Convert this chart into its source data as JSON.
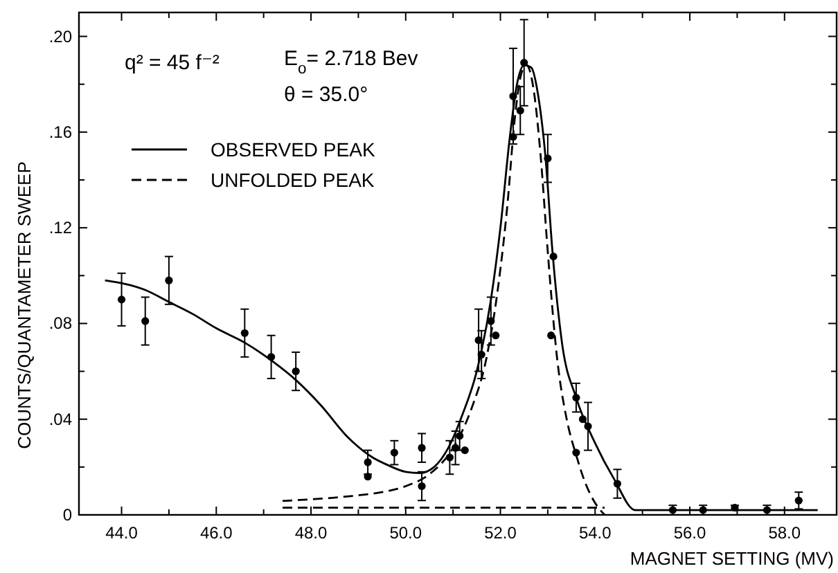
{
  "chart_data": {
    "type": "scatter",
    "xlabel": "MAGNET SETTING (MV)",
    "ylabel": "COUNTS/QUANTAMETER SWEEP",
    "annotations": [
      "q² = 45 f⁻²",
      "E$_{o}$= 2.718 Bev",
      "θ = 35.0°"
    ],
    "xlim": [
      43.1,
      59.1
    ],
    "ylim": [
      0,
      0.21
    ],
    "xticks": [
      {
        "value": 44,
        "label": "44.0"
      },
      {
        "value": 45,
        "label": null
      },
      {
        "value": 46,
        "label": "46.0"
      },
      {
        "value": 47,
        "label": null
      },
      {
        "value": 48,
        "label": "48.0"
      },
      {
        "value": 49,
        "label": null
      },
      {
        "value": 50,
        "label": "50.0"
      },
      {
        "value": 51,
        "label": null
      },
      {
        "value": 52,
        "label": "52.0"
      },
      {
        "value": 53,
        "label": null
      },
      {
        "value": 54,
        "label": "54.0"
      },
      {
        "value": 55,
        "label": null
      },
      {
        "value": 56,
        "label": "56.0"
      },
      {
        "value": 57,
        "label": null
      },
      {
        "value": 58,
        "label": "58.0"
      }
    ],
    "yticks": [
      0,
      {
        "value": 0.02,
        "label": null
      },
      {
        "value": 0.04,
        "label": ".04"
      },
      {
        "value": 0.06,
        "label": null
      },
      {
        "value": 0.08,
        "label": ".08"
      },
      {
        "value": 0.1,
        "label": null
      },
      {
        "value": 0.12,
        "label": ".12"
      },
      {
        "value": 0.14,
        "label": null
      },
      {
        "value": 0.16,
        "label": ".16"
      },
      {
        "value": 0.18,
        "label": null
      },
      {
        "value": 0.2,
        "label": ".20"
      }
    ],
    "grid": false,
    "legend": "top left",
    "series": [
      {
        "type": "line",
        "name": "OBSERVED PEAK",
        "color": "#000000",
        "line_style": "solid",
        "marker": "none",
        "x": [
          43.65,
          44.5,
          45,
          45.5,
          46,
          46.6,
          47.2,
          47.7,
          48.2,
          48.8,
          49.3,
          49.6,
          50.0,
          50.3,
          50.6,
          50.9,
          51.2,
          51.5,
          51.8,
          52.0,
          52.2,
          52.35,
          52.5,
          52.65,
          52.8,
          52.95,
          53.1,
          53.3,
          53.6,
          54.0,
          54.4,
          54.85,
          56.0,
          58.7
        ],
        "values": [
          0.098,
          0.094,
          0.089,
          0.084,
          0.078,
          0.072,
          0.064,
          0.056,
          0.046,
          0.032,
          0.024,
          0.021,
          0.018,
          0.0175,
          0.02,
          0.028,
          0.042,
          0.06,
          0.09,
          0.12,
          0.158,
          0.18,
          0.188,
          0.187,
          0.175,
          0.15,
          0.11,
          0.072,
          0.049,
          0.03,
          0.015,
          0.002,
          0.002,
          0.002
        ]
      },
      {
        "type": "line",
        "name": "UNFOLDED PEAK",
        "color": "#000000",
        "line_style": "dashed",
        "marker": "none",
        "x": [
          47.4,
          48.0,
          48.5,
          49.0,
          49.5,
          50.0,
          50.5,
          51.0,
          51.4,
          51.7,
          51.95,
          52.15,
          52.3,
          52.45,
          52.55,
          52.7,
          52.85,
          53.0,
          53.2,
          53.4,
          53.6,
          53.8,
          54.0,
          54.2
        ],
        "values": [
          0.0058,
          0.0065,
          0.0072,
          0.0082,
          0.0095,
          0.012,
          0.017,
          0.028,
          0.045,
          0.065,
          0.095,
          0.13,
          0.165,
          0.185,
          0.188,
          0.178,
          0.15,
          0.11,
          0.065,
          0.04,
          0.025,
          0.013,
          0.005,
          0.0
        ]
      },
      {
        "type": "line",
        "color": "#000000",
        "line_style": "dashed",
        "marker": "none",
        "x": [
          47.4,
          54.2
        ],
        "values": [
          0.003,
          0.003
        ]
      },
      {
        "color": "#000000",
        "marker": "circle",
        "x": [
          44.0,
          44.5,
          45.0,
          46.6,
          47.16,
          47.68,
          49.2,
          49.2,
          49.76,
          50.34,
          50.34,
          50.93,
          51.05,
          51.14,
          51.25,
          51.54,
          51.6,
          51.8,
          51.9,
          52.27,
          52.27,
          52.42,
          52.5,
          53.0,
          53.07,
          53.12,
          53.6,
          53.6,
          53.74,
          53.85,
          54.47,
          55.64,
          56.28,
          56.95,
          57.63,
          58.3
        ],
        "values": [
          0.09,
          0.081,
          0.098,
          0.076,
          0.066,
          0.06,
          0.022,
          0.016,
          0.026,
          0.028,
          0.012,
          0.024,
          0.028,
          0.033,
          0.027,
          0.073,
          0.067,
          0.081,
          0.075,
          0.175,
          0.158,
          0.169,
          0.189,
          0.149,
          0.075,
          0.108,
          0.049,
          0.026,
          0.04,
          0.037,
          0.013,
          0.002,
          0.002,
          0.003,
          0.002,
          0.006
        ],
        "errors": [
          0.011,
          0.01,
          0.01,
          0.01,
          0.009,
          0.008,
          0.005,
          null,
          0.005,
          0.006,
          0.006,
          0.007,
          0.007,
          0.006,
          null,
          0.013,
          0.01,
          0.01,
          null,
          0.02,
          null,
          0.01,
          0.018,
          0.01,
          null,
          null,
          0.006,
          null,
          null,
          0.01,
          0.006,
          0.002,
          0.002,
          0.001,
          0.002,
          0.0035
        ]
      }
    ]
  }
}
